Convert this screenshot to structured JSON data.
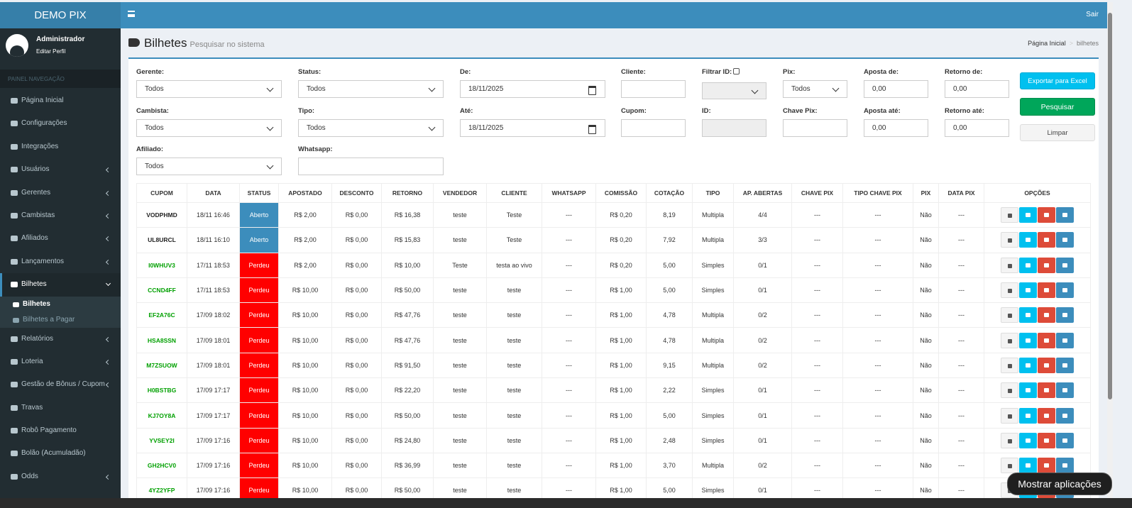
{
  "header": {
    "brand": "DEMO PIX",
    "logout": "Sair"
  },
  "user": {
    "name": "Administrador",
    "edit": "Editar Perfil"
  },
  "sidebar": {
    "heading": "PAINEL NAVEGAÇÃO",
    "items": [
      {
        "label": "Página Inicial",
        "submenu": false
      },
      {
        "label": "Configurações",
        "submenu": false
      },
      {
        "label": "Integrações",
        "submenu": false
      },
      {
        "label": "Usuários",
        "submenu": true
      },
      {
        "label": "Gerentes",
        "submenu": true
      },
      {
        "label": "Cambistas",
        "submenu": true
      },
      {
        "label": "Afiliados",
        "submenu": true
      },
      {
        "label": "Lançamentos",
        "submenu": true
      },
      {
        "label": "Bilhetes",
        "submenu": true,
        "active": true,
        "children": [
          "Bilhetes",
          "Bilhetes a Pagar"
        ]
      },
      {
        "label": "Relatórios",
        "submenu": true
      },
      {
        "label": "Loteria",
        "submenu": true
      },
      {
        "label": "Gestão de Bônus / Cupom",
        "submenu": true
      },
      {
        "label": "Travas",
        "submenu": false
      },
      {
        "label": "Robô Pagamento",
        "submenu": false
      },
      {
        "label": "Bolão (Acumuladão)",
        "submenu": false
      },
      {
        "label": "Odds",
        "submenu": true
      }
    ]
  },
  "page": {
    "title": "Bilhetes",
    "subtitle": "Pesquisar no sistema",
    "breadcrumb": [
      "Página Inicial",
      "bilhetes"
    ]
  },
  "filters": [
    {
      "label": "Gerente:",
      "kind": "select",
      "value": "Todos"
    },
    {
      "label": "Status:",
      "kind": "select",
      "value": "Todos"
    },
    {
      "label": "De:",
      "kind": "date",
      "value": "18/11/2025"
    },
    {
      "label": "Cliente:",
      "kind": "text"
    },
    {
      "label": "Filtrar ID:",
      "kind": "disabled-select",
      "checkbox": true
    },
    {
      "label": "Pix:",
      "kind": "select",
      "value": "Todos"
    },
    {
      "label": "Aposta de:",
      "kind": "text",
      "value": "0,00"
    },
    {
      "label": "Retorno de:",
      "kind": "text",
      "value": "0,00"
    },
    {
      "label": "Cambista:",
      "kind": "select",
      "value": "Todos"
    },
    {
      "label": "Tipo:",
      "kind": "select",
      "value": "Todos"
    },
    {
      "label": "Até:",
      "kind": "date",
      "value": "18/11/2025"
    },
    {
      "label": "Cupom:",
      "kind": "text"
    },
    {
      "label": "ID:",
      "kind": "disabled"
    },
    {
      "label": "Chave Pix:",
      "kind": "text"
    },
    {
      "label": "Aposta até:",
      "kind": "text",
      "value": "0,00"
    },
    {
      "label": "Retorno até:",
      "kind": "text",
      "value": "0,00"
    },
    {
      "label": "Afiliado:",
      "kind": "select",
      "value": "Todos"
    },
    {
      "label": "Whatsapp:",
      "kind": "text"
    }
  ],
  "buttons": {
    "export": "Exportar para Excel",
    "search": "Pesquisar",
    "clear": "Limpar"
  },
  "table": {
    "headers": [
      "CUPOM",
      "DATA",
      "STATUS",
      "APOSTADO",
      "DESCONTO",
      "RETORNO",
      "VENDEDOR",
      "CLIENTE",
      "WHATSAPP",
      "COMISSÃO",
      "COTAÇÃO",
      "TIPO",
      "AP. ABERTAS",
      "CHAVE PIX",
      "TIPO CHAVE PIX",
      "PIX",
      "DATA PIX",
      "OPÇÕES"
    ],
    "rows": [
      {
        "cupom_color": "#222",
        "status_color": "#3c8dbc",
        "cells": [
          "VODPHMD",
          "18/11 16:46",
          "Aberto",
          "R$ 2,00",
          "R$ 0,00",
          "R$ 16,38",
          "teste",
          "Teste",
          "---",
          "R$ 0,20",
          "8,19",
          "Multipla",
          "4/4",
          "---",
          "---",
          "Não",
          "---"
        ]
      },
      {
        "cupom_color": "#222",
        "status_color": "#3c8dbc",
        "cells": [
          "UL8URCL",
          "18/11 16:10",
          "Aberto",
          "R$ 2,00",
          "R$ 0,00",
          "R$ 15,83",
          "teste",
          "Teste",
          "---",
          "R$ 0,20",
          "7,92",
          "Multipla",
          "3/3",
          "---",
          "---",
          "Não",
          "---"
        ]
      },
      {
        "cupom_color": "#00a000",
        "status_color": "#ff0000",
        "cells": [
          "I0WHUV3",
          "17/11 18:53",
          "Perdeu",
          "R$ 2,00",
          "R$ 0,00",
          "R$ 10,00",
          "Teste",
          "testa ao vivo",
          "---",
          "R$ 0,20",
          "5,00",
          "Simples",
          "0/1",
          "---",
          "---",
          "Não",
          "---"
        ]
      },
      {
        "cupom_color": "#00a000",
        "status_color": "#ff0000",
        "cells": [
          "CCND4FF",
          "17/11 18:53",
          "Perdeu",
          "R$ 10,00",
          "R$ 0,00",
          "R$ 50,00",
          "teste",
          "teste",
          "---",
          "R$ 1,00",
          "5,00",
          "Simples",
          "0/1",
          "---",
          "---",
          "Não",
          "---"
        ]
      },
      {
        "cupom_color": "#00a000",
        "status_color": "#ff0000",
        "cells": [
          "EF2A76C",
          "17/09 18:02",
          "Perdeu",
          "R$ 10,00",
          "R$ 0,00",
          "R$ 47,76",
          "teste",
          "teste",
          "---",
          "R$ 1,00",
          "4,78",
          "Multipla",
          "0/2",
          "---",
          "---",
          "Não",
          "---"
        ]
      },
      {
        "cupom_color": "#00a000",
        "status_color": "#ff0000",
        "cells": [
          "HSA8SSN",
          "17/09 18:01",
          "Perdeu",
          "R$ 10,00",
          "R$ 0,00",
          "R$ 47,76",
          "teste",
          "teste",
          "---",
          "R$ 1,00",
          "4,78",
          "Multipla",
          "0/2",
          "---",
          "---",
          "Não",
          "---"
        ]
      },
      {
        "cupom_color": "#00a000",
        "status_color": "#ff0000",
        "cells": [
          "M7ZSUOW",
          "17/09 18:01",
          "Perdeu",
          "R$ 10,00",
          "R$ 0,00",
          "R$ 91,50",
          "teste",
          "teste",
          "---",
          "R$ 1,00",
          "9,15",
          "Multipla",
          "0/2",
          "---",
          "---",
          "Não",
          "---"
        ]
      },
      {
        "cupom_color": "#00a000",
        "status_color": "#ff0000",
        "cells": [
          "H0BSTBG",
          "17/09 17:17",
          "Perdeu",
          "R$ 10,00",
          "R$ 0,00",
          "R$ 22,20",
          "teste",
          "teste",
          "---",
          "R$ 1,00",
          "2,22",
          "Simples",
          "0/1",
          "---",
          "---",
          "Não",
          "---"
        ]
      },
      {
        "cupom_color": "#00a000",
        "status_color": "#ff0000",
        "cells": [
          "KJ7OY8A",
          "17/09 17:17",
          "Perdeu",
          "R$ 10,00",
          "R$ 0,00",
          "R$ 50,00",
          "teste",
          "teste",
          "---",
          "R$ 1,00",
          "5,00",
          "Simples",
          "0/1",
          "---",
          "---",
          "Não",
          "---"
        ]
      },
      {
        "cupom_color": "#00a000",
        "status_color": "#ff0000",
        "cells": [
          "YVSEY2I",
          "17/09 17:16",
          "Perdeu",
          "R$ 10,00",
          "R$ 0,00",
          "R$ 24,80",
          "teste",
          "teste",
          "---",
          "R$ 1,00",
          "2,48",
          "Simples",
          "0/1",
          "---",
          "---",
          "Não",
          "---"
        ]
      },
      {
        "cupom_color": "#00a000",
        "status_color": "#ff0000",
        "cells": [
          "GH2HCV0",
          "17/09 17:16",
          "Perdeu",
          "R$ 10,00",
          "R$ 0,00",
          "R$ 36,99",
          "teste",
          "teste",
          "---",
          "R$ 1,00",
          "3,70",
          "Multipla",
          "0/2",
          "---",
          "---",
          "Não",
          "---"
        ]
      },
      {
        "cupom_color": "#00a000",
        "status_color": "#ff0000",
        "cells": [
          "4YZ2YFP",
          "17/09 17:16",
          "Perdeu",
          "R$ 10,00",
          "R$ 0,00",
          "R$ 50,00",
          "teste",
          "teste",
          "---",
          "R$ 1,00",
          "5,00",
          "Simples",
          "0/1",
          "---",
          "---",
          "Não",
          "---"
        ]
      }
    ]
  },
  "toast": "Mostrar aplicações"
}
